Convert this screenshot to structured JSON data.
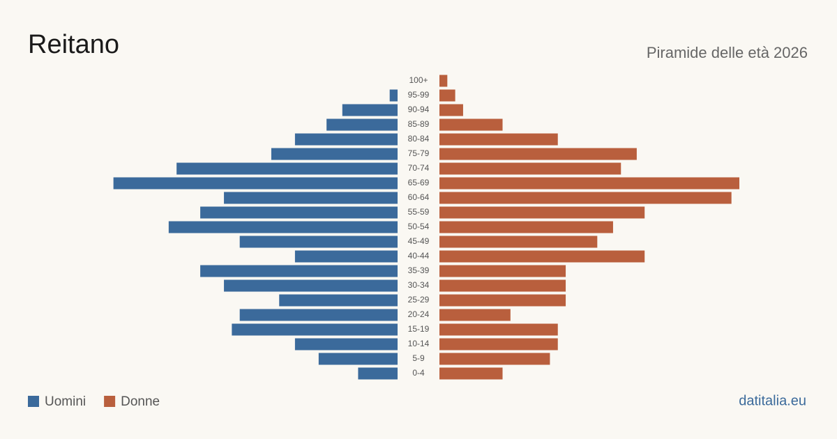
{
  "chart_data": {
    "type": "pyramid",
    "title": "Reitano",
    "subtitle": "Piramide delle età 2026",
    "source": "datitalia.eu",
    "categories": [
      "100+",
      "95-99",
      "90-94",
      "85-89",
      "80-84",
      "75-79",
      "70-74",
      "65-69",
      "60-64",
      "55-59",
      "50-54",
      "45-49",
      "40-44",
      "35-39",
      "30-34",
      "25-29",
      "20-24",
      "15-19",
      "10-14",
      "5-9",
      "0-4"
    ],
    "series": [
      {
        "name": "Uomini",
        "color": "#3b6a9b",
        "values": [
          0,
          1,
          7,
          9,
          13,
          16,
          28,
          36,
          22,
          25,
          29,
          20,
          13,
          25,
          22,
          15,
          20,
          21,
          13,
          10,
          5
        ]
      },
      {
        "name": "Donne",
        "color": "#b95f3d",
        "values": [
          1,
          2,
          3,
          8,
          15,
          25,
          23,
          38,
          37,
          26,
          22,
          20,
          26,
          16,
          16,
          16,
          9,
          15,
          15,
          14,
          8
        ]
      }
    ]
  }
}
